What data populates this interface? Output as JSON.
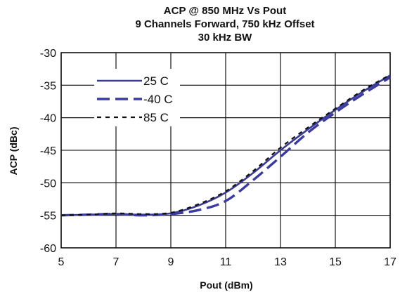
{
  "chart_data": {
    "type": "line",
    "title_lines": [
      "ACP @ 850 MHz Vs Pout",
      "9 Channels Forward, 750 kHz Offset",
      "30 kHz BW"
    ],
    "xlabel": "Pout (dBm)",
    "ylabel": "ACP (dBc)",
    "xlim": [
      5,
      17
    ],
    "ylim": [
      -60,
      -30
    ],
    "x_ticks": [
      5,
      7,
      9,
      11,
      13,
      15,
      17
    ],
    "y_ticks": [
      -30,
      -35,
      -40,
      -45,
      -50,
      -55,
      -60
    ],
    "grid": "vertical and horizontal",
    "legend_position": "upper-left inside plot",
    "series": [
      {
        "name": "25 C",
        "color": "#3b3b8f",
        "style": "solid",
        "points": [
          [
            5,
            -55
          ],
          [
            6,
            -54.9
          ],
          [
            7,
            -54.8
          ],
          [
            8,
            -54.9
          ],
          [
            9,
            -54.7
          ],
          [
            10,
            -53.5
          ],
          [
            11,
            -51.5
          ],
          [
            12,
            -48.5
          ],
          [
            13,
            -45.0
          ],
          [
            14,
            -41.8
          ],
          [
            15,
            -38.8
          ],
          [
            16,
            -36.0
          ],
          [
            17,
            -33.5
          ]
        ]
      },
      {
        "name": "-40 C",
        "color": "#3a3aa0",
        "style": "long-dash",
        "points": [
          [
            5,
            -55
          ],
          [
            6,
            -54.9
          ],
          [
            7,
            -54.8
          ],
          [
            8,
            -55.0
          ],
          [
            9,
            -54.8
          ],
          [
            10,
            -54.2
          ],
          [
            11,
            -52.8
          ],
          [
            12,
            -49.6
          ],
          [
            13,
            -46.0
          ],
          [
            14,
            -42.3
          ],
          [
            15,
            -39.2
          ],
          [
            16,
            -36.4
          ],
          [
            17,
            -33.8
          ]
        ]
      },
      {
        "name": "85 C",
        "color": "#111111",
        "style": "short-dash",
        "points": [
          [
            5,
            -55
          ],
          [
            6,
            -54.9
          ],
          [
            7,
            -54.7
          ],
          [
            8,
            -54.8
          ],
          [
            9,
            -54.6
          ],
          [
            10,
            -53.3
          ],
          [
            11,
            -51.3
          ],
          [
            12,
            -48.2
          ],
          [
            13,
            -44.6
          ],
          [
            14,
            -41.5
          ],
          [
            15,
            -38.6
          ],
          [
            16,
            -35.8
          ],
          [
            17,
            -33.4
          ]
        ]
      }
    ]
  }
}
